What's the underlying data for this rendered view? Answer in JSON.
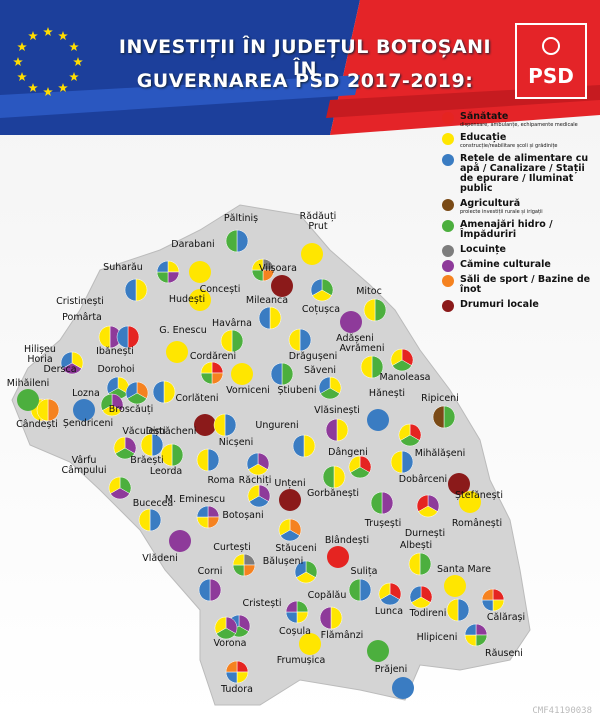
{
  "header": {
    "title_lines": [
      "INVESTIȚII ÎN JUDEȚUL BOTOȘANI ÎN",
      "GUVERNAREA PSD 2017-2019:"
    ],
    "logo": "PSD"
  },
  "legend": [
    {
      "label": "Sănătate",
      "note": "dispensare, ambulanțe, echipamente medicale",
      "color": "#e52421"
    },
    {
      "label": "Educație",
      "note": "construcție/reabilitare școli și grădinițe",
      "color": "#ffe600"
    },
    {
      "label": "Rețele de alimentare cu apă / Canalizare / Stații de epurare / Iluminat public",
      "color": "#3a7cc2"
    },
    {
      "label": "Agricultură",
      "note": "proiecte investiții rurale și irigații",
      "color": "#7a4a16"
    },
    {
      "label": "Amenajări hidro / Împăduriri",
      "color": "#4caf3e"
    },
    {
      "label": "Locuințe",
      "color": "#7d7d7d"
    },
    {
      "label": "Cămine culturale",
      "color": "#8e3a9a"
    },
    {
      "label": "Săli de sport / Bazine de înot",
      "color": "#f58220"
    },
    {
      "label": "Drumuri locale",
      "color": "#8b1a1a"
    }
  ],
  "places": [
    "Păltiniș",
    "Rădăuți Prut",
    "Darabani",
    "Suharău",
    "Concești",
    "Viișoara",
    "Cristinești",
    "Hudești",
    "Mileanca",
    "Coțușca",
    "Mitoc",
    "Pomârta",
    "G. Enescu",
    "Havârna",
    "Adășeni",
    "Hilișeu Horia",
    "Ibănești",
    "Cordăreni",
    "Drăgușeni",
    "Avrămeni",
    "Dersca",
    "Dorohoi",
    "Săveni",
    "Manoleasa",
    "Mihăileni",
    "Lozna",
    "Vorniceni",
    "Știubeni",
    "Hănești",
    "Ripiceni",
    "Broscăuți",
    "Corlăteni",
    "Șendriceni",
    "Dimăcheni",
    "Vlăsinești",
    "Cândești",
    "Văculești",
    "Ungureni",
    "Nicșeni",
    "Dângeni",
    "Mihălășeni",
    "Vârfu Câmpului",
    "Brăești",
    "Leorda",
    "Roma",
    "Dobârceni",
    "Ștefănești",
    "Răchiți",
    "Unțeni",
    "Gorbănești",
    "Bucecea",
    "M. Eminescu",
    "Trușești",
    "Românești",
    "Botoșani",
    "Durnești",
    "Curtești",
    "Stăuceni",
    "Blândești",
    "Albești",
    "Vlădeni",
    "Bălușeni",
    "Santa Mare",
    "Corni",
    "Sulița",
    "Cristești",
    "Copălău",
    "Lunca",
    "Todireni",
    "Călărași",
    "Coșula",
    "Vorona",
    "Flămânzi",
    "Hlipiceni",
    "Răuseni",
    "Frumușica",
    "Prăjeni",
    "Tudora"
  ],
  "footer_code": "CMF41190038"
}
